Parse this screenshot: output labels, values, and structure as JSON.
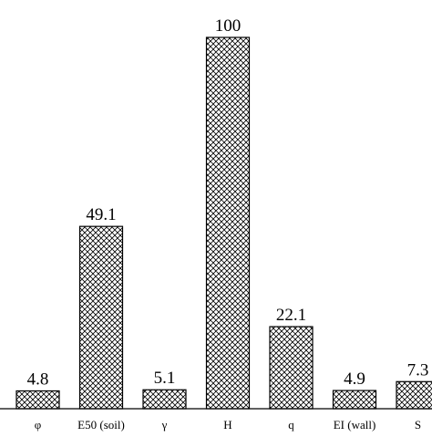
{
  "chart_data": {
    "type": "bar",
    "categories": [
      "φ",
      "E50 (soil)",
      "γ",
      "H",
      "q",
      "EI (wall)",
      "S"
    ],
    "values": [
      4.8,
      49.1,
      5.1,
      100,
      22.1,
      4.9,
      7.3
    ],
    "value_labels": [
      "4.8",
      "49.1",
      "5.1",
      "100",
      "22.1",
      "4.9",
      "7.3"
    ],
    "title": "",
    "xlabel": "",
    "ylabel": "",
    "ylim": [
      0,
      100
    ],
    "grid": false,
    "legend": "none",
    "bar_fill": "crosshatch",
    "colors": {
      "bar_stroke": "#000000",
      "hatch": "#000000",
      "background": "#ffffff",
      "text": "#000000"
    }
  }
}
